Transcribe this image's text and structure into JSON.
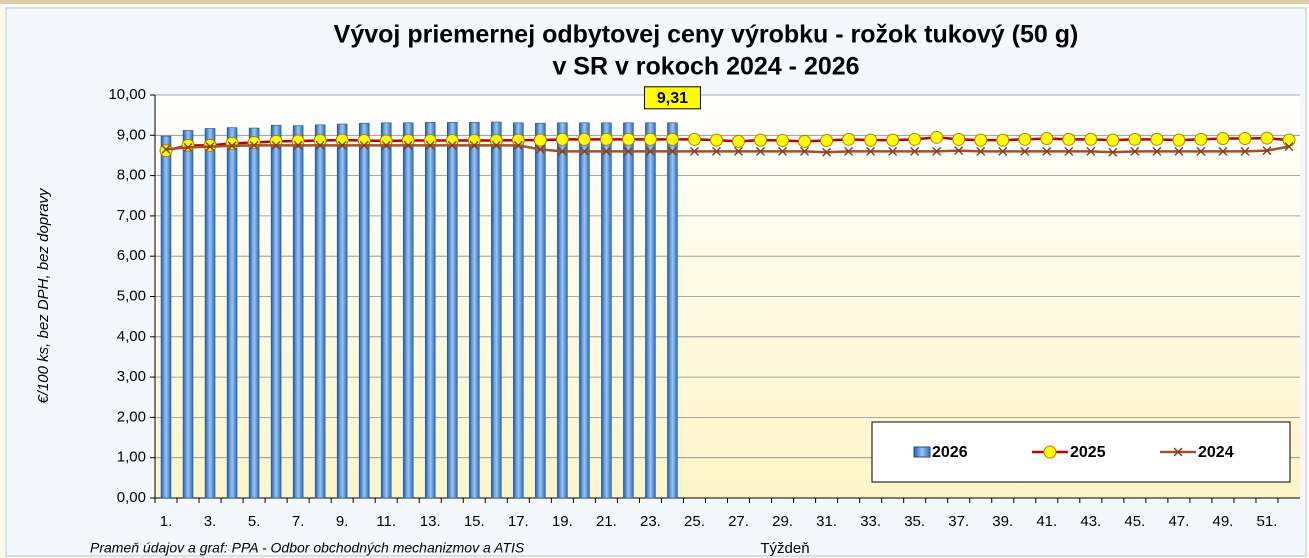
{
  "chart_data": {
    "type": "bar-line",
    "title": [
      "Vývoj priemernej odbytovej ceny výrobku - rožok tukový (50 g)",
      "v SR v rokoch 2024 - 2026"
    ],
    "y_label": "€/100 ks, bez DPH, bez dopravy",
    "x_label": "Týždeň",
    "source": "Prameň údajov a graf: PPA - Odbor obchodných mechanizmov a ATIS",
    "categories": [
      "1.",
      null,
      "3.",
      null,
      "5.",
      null,
      "7.",
      null,
      "9.",
      null,
      "11.",
      null,
      "13.",
      null,
      "15.",
      null,
      "17.",
      null,
      "19.",
      null,
      "21.",
      null,
      "23.",
      null,
      "25.",
      null,
      "27.",
      null,
      "29.",
      null,
      "31.",
      null,
      "33.",
      null,
      "35.",
      null,
      "37.",
      null,
      "39.",
      null,
      "41.",
      null,
      "43.",
      null,
      "45.",
      null,
      "47.",
      null,
      "49.",
      null,
      "51.",
      null
    ],
    "ylim": [
      0,
      10
    ],
    "yticks": [
      {
        "value": 0,
        "label": "0,00"
      },
      {
        "value": 1,
        "label": "1,00"
      },
      {
        "value": 2,
        "label": "2,00"
      },
      {
        "value": 3,
        "label": "3,00"
      },
      {
        "value": 4,
        "label": "4,00"
      },
      {
        "value": 5,
        "label": "5,00"
      },
      {
        "value": 6,
        "label": "6,00"
      },
      {
        "value": 7,
        "label": "7,00"
      },
      {
        "value": 8,
        "label": "8,00"
      },
      {
        "value": 9,
        "label": "9,00"
      },
      {
        "value": 10,
        "label": "10,00"
      }
    ],
    "grid": true,
    "legend": "lower right",
    "series": [
      {
        "name": "2026",
        "kind": "bar",
        "color": "#4f8fdc",
        "values": [
          8.98,
          9.12,
          9.17,
          9.19,
          9.18,
          9.25,
          9.24,
          9.26,
          9.28,
          9.3,
          9.31,
          9.31,
          9.32,
          9.32,
          9.32,
          9.33,
          9.31,
          9.3,
          9.31,
          9.31,
          9.31,
          9.31,
          9.31,
          9.31,
          null,
          null,
          null,
          null,
          null,
          null,
          null,
          null,
          null,
          null,
          null,
          null,
          null,
          null,
          null,
          null,
          null,
          null,
          null,
          null,
          null,
          null,
          null,
          null,
          null,
          null,
          null,
          null
        ],
        "value_labels": [
          null,
          null,
          null,
          null,
          null,
          null,
          null,
          null,
          null,
          null,
          null,
          null,
          null,
          null,
          null,
          null,
          null,
          null,
          null,
          null,
          null,
          null,
          null,
          "9,31",
          null,
          null,
          null,
          null,
          null,
          null,
          null,
          null,
          null,
          null,
          null,
          null,
          null,
          null,
          null,
          null,
          null,
          null,
          null,
          null,
          null,
          null,
          null,
          null,
          null,
          null,
          null,
          null
        ]
      },
      {
        "name": "2025",
        "kind": "line",
        "color": "#c00000",
        "marker": "circle",
        "marker_color": "#ffff00",
        "values": [
          8.62,
          8.75,
          8.75,
          8.8,
          8.82,
          8.85,
          8.86,
          8.87,
          8.88,
          8.87,
          8.86,
          8.87,
          8.87,
          8.87,
          8.87,
          8.87,
          8.88,
          8.88,
          8.9,
          8.9,
          8.9,
          8.9,
          8.9,
          8.9,
          8.9,
          8.88,
          8.85,
          8.88,
          8.87,
          8.85,
          8.87,
          8.9,
          8.88,
          8.88,
          8.9,
          8.95,
          8.9,
          8.88,
          8.88,
          8.9,
          8.92,
          8.9,
          8.9,
          8.88,
          8.9,
          8.9,
          8.88,
          8.9,
          8.92,
          8.92,
          8.93,
          8.88
        ]
      },
      {
        "name": "2024",
        "kind": "line",
        "color": "#a0522d",
        "marker": "x",
        "marker_color": "#7f3f1f",
        "values": [
          8.65,
          8.7,
          8.72,
          8.74,
          8.75,
          8.75,
          8.75,
          8.75,
          8.75,
          8.75,
          8.75,
          8.75,
          8.75,
          8.75,
          8.75,
          8.75,
          8.75,
          8.65,
          8.6,
          8.6,
          8.6,
          8.6,
          8.6,
          8.6,
          8.6,
          8.6,
          8.6,
          8.6,
          8.6,
          8.6,
          8.58,
          8.6,
          8.6,
          8.6,
          8.6,
          8.6,
          8.62,
          8.6,
          8.6,
          8.6,
          8.6,
          8.6,
          8.6,
          8.58,
          8.6,
          8.6,
          8.6,
          8.6,
          8.6,
          8.6,
          8.62,
          8.72
        ]
      }
    ]
  }
}
